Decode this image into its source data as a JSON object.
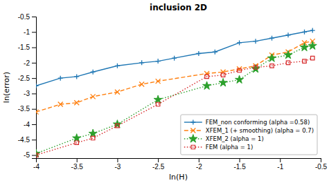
{
  "chart_data": {
    "type": "line",
    "title": "inclusion 2D",
    "x_label": "ln(H)",
    "y_label": "ln(error)",
    "xlim": [
      -4.0,
      -0.5
    ],
    "ylim": [
      -5.1,
      -0.5
    ],
    "xticks": [
      -4,
      -3.5,
      -3,
      -2.5,
      -2,
      -1.5,
      -1,
      -0.5
    ],
    "yticks": [
      -5,
      -4.5,
      -4,
      -3.5,
      -3,
      -2.5,
      -2,
      -1.5,
      -1,
      -0.5
    ],
    "grid": false,
    "legend": "lower right",
    "series": [
      {
        "name": "FEM_non conforming (alpha =0.58)",
        "marker": "plus",
        "line_style": "solid",
        "x": [
          -4.0,
          -3.7,
          -3.5,
          -3.3,
          -3.0,
          -2.7,
          -2.5,
          -2.3,
          -2.0,
          -1.8,
          -1.5,
          -1.3,
          -1.1,
          -0.9,
          -0.7,
          -0.6
        ],
        "values": [
          -2.75,
          -2.5,
          -2.45,
          -2.3,
          -2.1,
          -2.0,
          -1.95,
          -1.85,
          -1.7,
          -1.65,
          -1.35,
          -1.3,
          -1.2,
          -1.1,
          -1.0,
          -0.95
        ]
      },
      {
        "name": "XFEM_1 (+ smoothing) (alpha = 0.7)",
        "marker": "x",
        "line_style": "dashed",
        "x": [
          -4.0,
          -3.7,
          -3.5,
          -3.3,
          -3.0,
          -2.7,
          -2.5,
          -1.9,
          -1.7,
          -1.5,
          -1.3,
          -1.1,
          -0.9,
          -0.7,
          -0.6
        ],
        "values": [
          -3.6,
          -3.35,
          -3.3,
          -3.1,
          -2.95,
          -2.7,
          -2.6,
          -2.35,
          -2.3,
          -2.2,
          -2.1,
          -1.75,
          -1.65,
          -1.35,
          -1.3
        ]
      },
      {
        "name": "XFEM_2 (alpha = 1)",
        "marker": "star",
        "line_style": "dotted",
        "x": [
          -4.0,
          -3.5,
          -3.3,
          -3.0,
          -2.5,
          -1.9,
          -1.7,
          -1.5,
          -1.3,
          -1.1,
          -0.9,
          -0.7,
          -0.6
        ],
        "values": [
          -4.95,
          -4.45,
          -4.3,
          -4.0,
          -3.2,
          -2.75,
          -2.65,
          -2.55,
          -2.2,
          -1.85,
          -1.75,
          -1.5,
          -1.45
        ]
      },
      {
        "name": "FEM (alpha = 1)",
        "marker": "square",
        "line_style": "dotted",
        "x": [
          -4.0,
          -3.5,
          -3.3,
          -3.0,
          -2.5,
          -1.9,
          -1.7,
          -1.5,
          -1.3,
          -1.1,
          -0.9,
          -0.7,
          -0.6
        ],
        "values": [
          -5.0,
          -4.6,
          -4.45,
          -4.05,
          -3.35,
          -2.45,
          -2.4,
          -2.25,
          -2.15,
          -2.1,
          -2.0,
          -1.95,
          -1.85
        ]
      }
    ]
  }
}
